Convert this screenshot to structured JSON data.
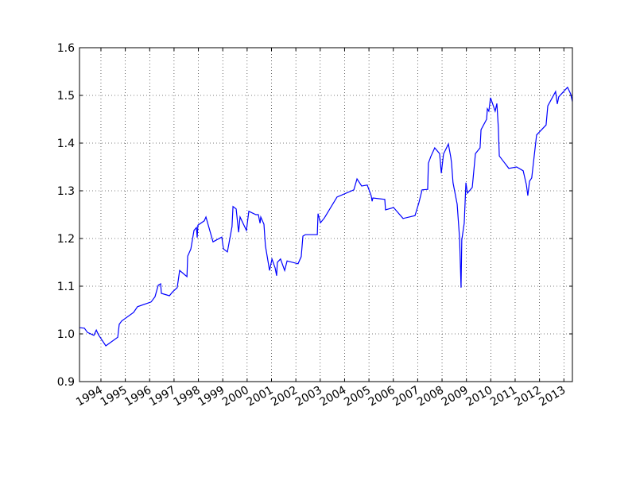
{
  "chart_data": {
    "type": "line",
    "x": [
      1993.12,
      1993.32,
      1993.45,
      1993.71,
      1993.81,
      1993.9,
      1994.2,
      1994.69,
      1994.75,
      1994.85,
      1995.34,
      1995.5,
      1996.06,
      1996.22,
      1996.35,
      1996.45,
      1996.48,
      1996.81,
      1996.94,
      1997.13,
      1997.23,
      1997.53,
      1997.56,
      1997.69,
      1997.82,
      1997.92,
      1997.95,
      1997.98,
      1998.24,
      1998.31,
      1998.6,
      1998.96,
      1999.03,
      1999.19,
      1999.38,
      1999.42,
      1999.55,
      1999.65,
      1999.71,
      1999.97,
      2000.07,
      2000.36,
      2000.46,
      2000.53,
      2000.56,
      2000.69,
      2000.75,
      2000.92,
      2001.02,
      2001.15,
      2001.21,
      2001.24,
      2001.37,
      2001.54,
      2001.64,
      2002.09,
      2002.22,
      2002.29,
      2002.39,
      2002.88,
      2002.91,
      2003.01,
      2003.17,
      2003.69,
      2004.38,
      2004.51,
      2004.7,
      2004.93,
      2005.09,
      2005.13,
      2005.16,
      2005.65,
      2005.68,
      2006.01,
      2006.4,
      2006.89,
      2007.05,
      2007.18,
      2007.41,
      2007.44,
      2007.54,
      2007.7,
      2007.9,
      2007.97,
      2008.06,
      2008.26,
      2008.36,
      2008.39,
      2008.45,
      2008.62,
      2008.72,
      2008.78,
      2008.81,
      2008.91,
      2008.98,
      2009.04,
      2009.24,
      2009.37,
      2009.56,
      2009.6,
      2009.83,
      2009.86,
      2009.92,
      2009.99,
      2010.18,
      2010.25,
      2010.31,
      2010.35,
      2010.74,
      2011.06,
      2011.33,
      2011.46,
      2011.52,
      2011.59,
      2011.68,
      2011.88,
      2012.27,
      2012.34,
      2012.66,
      2012.73,
      2012.79,
      2013.15,
      2013.28,
      2013.35
    ],
    "series": [
      {
        "color": "#0000ff",
        "values": [
          1.013,
          1.012,
          1.003,
          0.997,
          1.008,
          0.998,
          0.975,
          0.993,
          1.02,
          1.027,
          1.045,
          1.057,
          1.067,
          1.078,
          1.102,
          1.105,
          1.085,
          1.08,
          1.088,
          1.097,
          1.133,
          1.12,
          1.163,
          1.178,
          1.217,
          1.223,
          1.202,
          1.228,
          1.237,
          1.245,
          1.193,
          1.203,
          1.178,
          1.172,
          1.225,
          1.267,
          1.262,
          1.213,
          1.245,
          1.217,
          1.257,
          1.25,
          1.25,
          1.232,
          1.245,
          1.23,
          1.185,
          1.133,
          1.157,
          1.138,
          1.122,
          1.15,
          1.157,
          1.133,
          1.153,
          1.147,
          1.162,
          1.205,
          1.208,
          1.208,
          1.252,
          1.233,
          1.243,
          1.287,
          1.302,
          1.325,
          1.31,
          1.312,
          1.29,
          1.278,
          1.285,
          1.282,
          1.26,
          1.265,
          1.242,
          1.248,
          1.275,
          1.302,
          1.303,
          1.358,
          1.372,
          1.39,
          1.378,
          1.337,
          1.377,
          1.398,
          1.37,
          1.358,
          1.317,
          1.272,
          1.2,
          1.097,
          1.197,
          1.232,
          1.317,
          1.295,
          1.307,
          1.378,
          1.39,
          1.428,
          1.45,
          1.472,
          1.467,
          1.495,
          1.467,
          1.483,
          1.433,
          1.373,
          1.347,
          1.35,
          1.342,
          1.313,
          1.29,
          1.32,
          1.327,
          1.417,
          1.438,
          1.478,
          1.508,
          1.482,
          1.497,
          1.517,
          1.503,
          1.487
        ]
      }
    ],
    "xlim": [
      1993.12,
      2013.35
    ],
    "xticks": [
      1994,
      1995,
      1996,
      1997,
      1998,
      1999,
      2000,
      2001,
      2002,
      2003,
      2004,
      2005,
      2006,
      2007,
      2008,
      2009,
      2010,
      2011,
      2012,
      2013
    ],
    "ylim": [
      0.9,
      1.6
    ],
    "yticks": [
      {
        "value": 0.9,
        "label": "0.9"
      },
      {
        "value": 1.0,
        "label": "1.0"
      },
      {
        "value": 1.1,
        "label": "1.1"
      },
      {
        "value": 1.2,
        "label": "1.2"
      },
      {
        "value": 1.3,
        "label": "1.3"
      },
      {
        "value": 1.4,
        "label": "1.4"
      },
      {
        "value": 1.5,
        "label": "1.5"
      },
      {
        "value": 1.6,
        "label": "1.6"
      }
    ],
    "grid": true
  }
}
